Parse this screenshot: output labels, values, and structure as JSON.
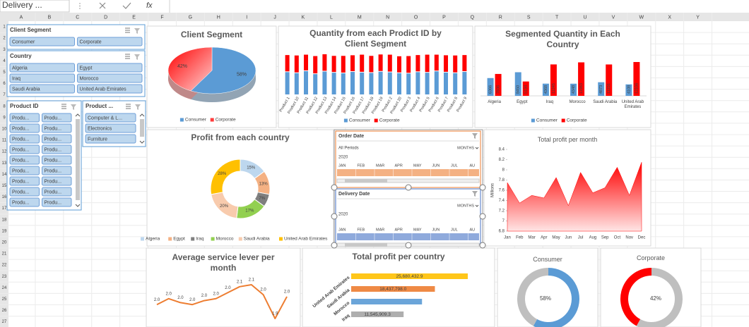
{
  "toolbar": {
    "name_box": "Delivery ...",
    "formula_icon": "fx"
  },
  "columns": [
    "A",
    "B",
    "C",
    "D",
    "E",
    "F",
    "G",
    "H",
    "I",
    "J",
    "K",
    "L",
    "M",
    "N",
    "O",
    "P",
    "Q",
    "R",
    "S",
    "T",
    "U",
    "V",
    "W",
    "X",
    "Y"
  ],
  "rows": [
    1,
    2,
    3,
    4,
    5,
    6,
    7,
    8,
    9,
    10,
    11,
    12,
    13,
    14,
    15,
    16,
    17,
    18,
    19,
    20,
    21,
    22,
    23,
    24,
    25,
    26,
    27
  ],
  "slicers": [
    {
      "title": "Client Segment",
      "items": [
        "Consumer",
        "Corporate"
      ]
    },
    {
      "title": "Country",
      "items": [
        "Algeria",
        "Egypt",
        "Iraq",
        "Morocco",
        "Saudi Arabia",
        "United Arab Emirates"
      ]
    },
    {
      "title": "Product ID",
      "items": [
        "Produ...",
        "Produ...",
        "Produ...",
        "Produ...",
        "Produ...",
        "Produ...",
        "Produ...",
        "Produ...",
        "Produ...",
        "Produ...",
        "Produ...",
        "Produ...",
        "Produ...",
        "Produ...",
        "Produ...",
        "Produ...",
        "Produ...",
        "Produ..."
      ]
    },
    {
      "title": "Product ...",
      "items": [
        "Computer & L...",
        "Electronics",
        "Furniture"
      ]
    }
  ],
  "timelines": [
    {
      "title": "Order Date",
      "selection": "All Periods",
      "level": "MONTHS",
      "year": 2020,
      "months": [
        "JAN",
        "FEB",
        "MAR",
        "APR",
        "MAY",
        "JUN",
        "JUL",
        "AU"
      ]
    },
    {
      "title": "Delivery Date",
      "level": "MONTHS",
      "year": 2020,
      "months": [
        "JAN",
        "FEB",
        "MAR",
        "APR",
        "MAY",
        "JUN",
        "JUL",
        "AU"
      ]
    }
  ],
  "chart_data": [
    {
      "type": "pie",
      "title": "Client Segment",
      "categories": [
        "Consumer",
        "Corporate"
      ],
      "values": [
        58,
        42
      ],
      "value_labels": [
        "58%",
        "42%"
      ],
      "colors": [
        "#5b9bd5",
        "#ff3b3b"
      ]
    },
    {
      "type": "stacked_bar",
      "title": "Quantity from each Prodict ID by Client Segment",
      "categories": [
        "Product 1",
        "Product 10",
        "Product 11",
        "Product 12",
        "Product 13",
        "Product 14",
        "Product 15",
        "Product 16",
        "Product 17",
        "Product 18",
        "Product 19",
        "Product 2",
        "Product 20",
        "Product 3",
        "Product 4",
        "Product 5",
        "Product 6",
        "Product 7",
        "Product 8",
        "Product 9"
      ],
      "series": [
        {
          "name": "Consumer",
          "color": "#5b9bd5",
          "values": [
            1150,
            1100,
            1200,
            1050,
            1180,
            1120,
            1090,
            1160,
            1130,
            1110,
            1170,
            1140,
            1100,
            1080,
            1150,
            1120,
            1190,
            1130,
            1100,
            1160
          ]
        },
        {
          "name": "Corporate",
          "color": "#ff0000",
          "values": [
            850,
            880,
            820,
            900,
            860,
            840,
            870,
            830,
            890,
            850,
            860,
            880,
            840,
            870,
            850,
            900,
            830,
            860,
            880,
            840
          ]
        }
      ]
    },
    {
      "type": "bar",
      "title": "Segmented Quantity in Each Country",
      "categories": [
        "Algeria",
        "Egypt",
        "Iraq",
        "Morocco",
        "Saudi Arabia",
        "United Arab Emirates"
      ],
      "series": [
        {
          "name": "Consumer",
          "color": "#5b9bd5",
          "values": [
            6366,
            8450,
            4368,
            4348,
            4873,
            4108
          ]
        },
        {
          "name": "Corporate",
          "color": "#ff0000",
          "values": [
            7836,
            5134,
            11245,
            11983,
            11231,
            12106
          ]
        }
      ]
    },
    {
      "type": "donut",
      "title": "Profit from each country",
      "categories": [
        "Algeria",
        "Egypt",
        "Iraq",
        "Morocco",
        "Saudi Arabia",
        "United Arab Emirates"
      ],
      "values": [
        15,
        13,
        7,
        17,
        20,
        28
      ],
      "value_labels": [
        "15%",
        "13%",
        "7%",
        "17%",
        "20%",
        "28%"
      ],
      "colors": [
        "#bdd7ee",
        "#f4b183",
        "#7f7f7f",
        "#92d050",
        "#f8cbad",
        "#ffc000"
      ]
    },
    {
      "type": "area",
      "title": "Total profit per month",
      "y_label": "Millions",
      "categories": [
        "Jan",
        "Feb",
        "Mar",
        "Apr",
        "May",
        "Jun",
        "Jul",
        "Aug",
        "Sep",
        "Oct",
        "Nov",
        "Dec"
      ],
      "values": [
        7.75,
        7.35,
        7.5,
        7.45,
        7.85,
        7.3,
        7.95,
        7.55,
        7.65,
        8.05,
        7.5,
        8.15
      ],
      "ylim": [
        6.8,
        8.4
      ],
      "yticks": [
        6.8,
        7,
        7.2,
        7.4,
        7.6,
        7.8,
        8,
        8.2,
        8.4
      ],
      "color": "#ff0000"
    },
    {
      "type": "line",
      "title": "Average service lever per month",
      "values": [
        1.98,
        2.01,
        1.99,
        1.98,
        2.0,
        2.01,
        2.04,
        2.07,
        2.08,
        2.03,
        1.91,
        2.02
      ],
      "value_labels": [
        "2.0",
        "2.0",
        "2.0",
        "2.0",
        "2.0",
        "2.0",
        "2.0",
        "2.1",
        "2.1",
        "2.0",
        "1.9",
        "2.0"
      ],
      "color": "#ed7d31"
    },
    {
      "type": "hbar",
      "title": "Total profit per country",
      "categories": [
        "United Arab Emirates",
        "Saudi Arabia",
        "Morocco",
        "Iraq"
      ],
      "values": [
        25680432.9,
        18437798.0,
        15600000,
        11545909.3
      ],
      "value_labels": [
        "25,680,432.9",
        "18,437,798.0",
        null,
        "11,545,909.3"
      ],
      "colors": [
        "#ffc000",
        "#ed7d31",
        "#5b9bd5",
        "#a5a5a5"
      ]
    },
    {
      "type": "ring",
      "title": "Consumer",
      "categories": [
        "Consumer",
        "Corporate"
      ],
      "values": [
        58,
        42
      ],
      "value_labels": [
        "58%",
        null
      ],
      "colors": [
        "#5b9bd5",
        "#bfbfbf"
      ]
    },
    {
      "type": "ring",
      "title": "Corporate",
      "categories": [
        "Consumer",
        "Corporate"
      ],
      "values": [
        58,
        42
      ],
      "value_labels": [
        null,
        "42%"
      ],
      "colors": [
        "#bfbfbf",
        "#ff0000"
      ]
    }
  ]
}
